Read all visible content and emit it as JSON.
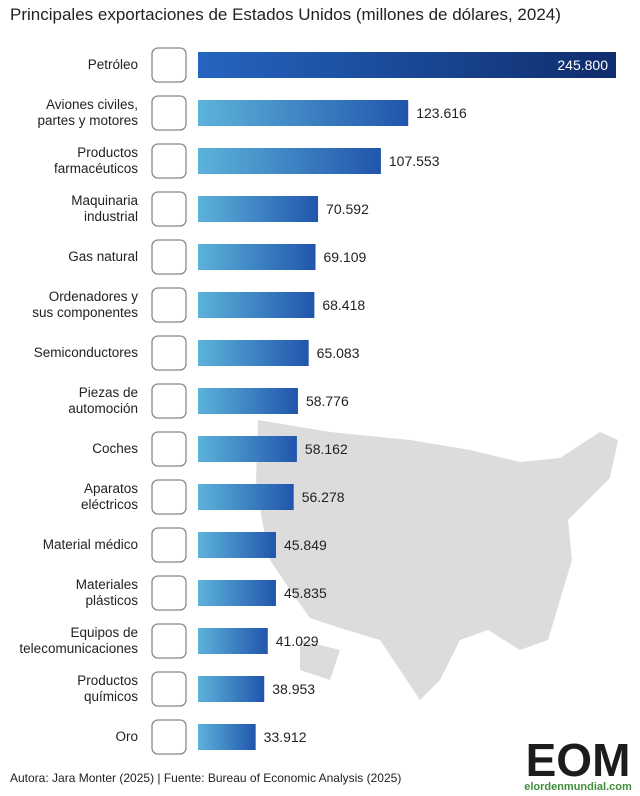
{
  "chart_data": {
    "type": "bar",
    "orientation": "horizontal",
    "title": "Principales exportaciones de Estados Unidos (millones de dólares, 2024)",
    "categories": [
      "Petróleo",
      "Aviones civiles,\npartes y motores",
      "Productos\nfarmacéuticos",
      "Maquinaria\nindustrial",
      "Gas natural",
      "Ordenadores y\nsus componentes",
      "Semiconductores",
      "Piezas de\nautomoción",
      "Coches",
      "Aparatos\neléctricos",
      "Material médico",
      "Materiales\nplásticos",
      "Equipos de\ntelecomunicaciones",
      "Productos\nquímicos",
      "Oro"
    ],
    "values": [
      245800,
      123616,
      107553,
      70592,
      69109,
      68418,
      65083,
      58776,
      58162,
      56278,
      45849,
      45835,
      41029,
      38953,
      33912
    ],
    "value_labels": [
      "245.800",
      "123.616",
      "107.553",
      "70.592",
      "69.109",
      "68.418",
      "65.083",
      "58.776",
      "58.162",
      "56.278",
      "45.849",
      "45.835",
      "41.029",
      "38.953",
      "33.912"
    ],
    "gradient": [
      "#5cb3da",
      "#2155ac"
    ],
    "highlight_gradient": [
      "#2565c0",
      "#0f2c6c"
    ],
    "source": "Autora: Jara Monter (2025) | Fuente: Bureau of Economic Analysis (2025)",
    "logo": {
      "text": "EOM",
      "url": "elordenmundial.com"
    }
  }
}
